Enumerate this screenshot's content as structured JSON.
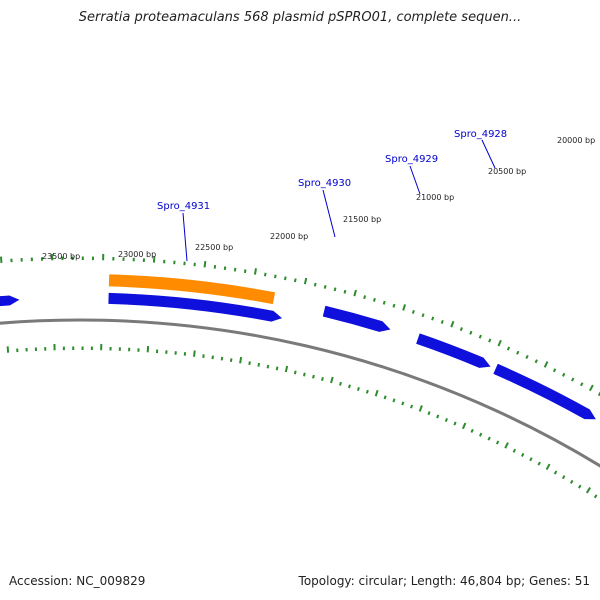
{
  "title": "Serratia proteamaculans 568 plasmid pSPRO01, complete sequen...",
  "accession": "Accession: NC_009829",
  "footer": "Topology: circular; Length: 46,804 bp; Genes: 51",
  "colors": {
    "backbone": "#7a7a7a",
    "tick": "#2e8b2e",
    "gene_forward": "#1010dd",
    "gene_highlight": "#ff8c00",
    "gene_label": "#0000cc"
  },
  "position_labels": [
    "23500 bp",
    "23000 bp",
    "22500 bp",
    "22000 bp",
    "21500 bp",
    "21000 bp",
    "20500 bp",
    "20000 bp"
  ],
  "gene_labels": [
    "Spro_4931",
    "Spro_4930",
    "Spro_4929",
    "Spro_4928"
  ],
  "genes": [
    {
      "label": "Spro_4931",
      "color": "orange"
    },
    {
      "label": "",
      "color": "blue"
    },
    {
      "label": "Spro_4930",
      "color": "blue"
    },
    {
      "label": "Spro_4929",
      "color": "blue"
    },
    {
      "label": "Spro_4928",
      "color": "blue"
    }
  ]
}
